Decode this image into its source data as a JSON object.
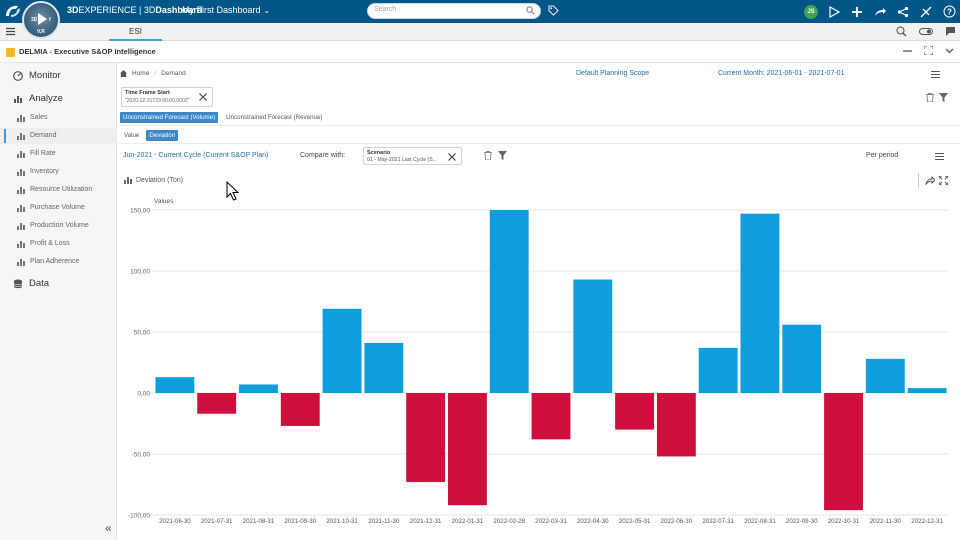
{
  "topbar": {
    "compass_marks": [
      "3D",
      "f",
      "V,R"
    ],
    "brand_prefix": "3D",
    "brand_main": "EXPERIENCE",
    "brand_sep": " | 3D",
    "brand_app": "Dashboard",
    "dashboard_title": "My First Dashboard",
    "search_placeholder": "Search",
    "avatar_initials": "JS"
  },
  "tabs": [
    {
      "label": "ESI"
    }
  ],
  "app": {
    "title": "DELMIA - Executive S&OP Intelligence"
  },
  "sidebar": {
    "sections": [
      {
        "label": "Monitor",
        "icon": "gauge-icon"
      },
      {
        "label": "Analyze",
        "icon": "bar-chart-icon"
      },
      {
        "label": "Data",
        "icon": "database-icon"
      }
    ],
    "items": [
      {
        "label": "Sales"
      },
      {
        "label": "Demand"
      },
      {
        "label": "Fill Rate"
      },
      {
        "label": "Inventory"
      },
      {
        "label": "Resource Utilization"
      },
      {
        "label": "Purchase Volume"
      },
      {
        "label": "Production Volume"
      },
      {
        "label": "Profit & Loss"
      },
      {
        "label": "Plan Adherence"
      }
    ],
    "active_item": "Demand",
    "collapse_glyph": "«"
  },
  "breadcrumb": {
    "home": "Home",
    "sep": "/",
    "current": "Demand"
  },
  "header": {
    "scope": "Default Planning Scope",
    "current_month": "Current Month: 2021-06-01 - 2021-07-01"
  },
  "time_frame": {
    "title": "Time Frame Start",
    "value": "\"2020-12-31T23:00:00.000Z\""
  },
  "forecast_tabs": [
    "Unconstrained Forecast (Volume)",
    "Unconstrained Forecast (Revenue)"
  ],
  "view_tabs": [
    "Value",
    "Deviation"
  ],
  "compare_bar": {
    "cycle": "Jun-2021 - Current Cycle (Current S&OP Plan)",
    "compare_label": "Compare with:",
    "scenario_title": "Scenario",
    "scenario_value": "01 - May-2021 Last Cycle (S...",
    "period": "Per period"
  },
  "chart_header": {
    "title": "Deviation (Ton)"
  },
  "colors": {
    "positive": "#0e9ddd",
    "negative": "#ce0e3c",
    "topbar": "#005686",
    "accent": "#3d87c6"
  },
  "chart_data": {
    "type": "bar",
    "title": "Deviation (Ton)",
    "ylabel": "Values",
    "ylim": [
      -110,
      150
    ],
    "yticks": [
      150,
      100,
      50,
      0,
      -50,
      -100
    ],
    "ytick_labels": [
      "150,00",
      "100,00",
      "50,00",
      "0,00",
      "-50,00",
      "-100,00"
    ],
    "grid": true,
    "categories": [
      "2021-06-30",
      "2021-07-31",
      "2021-08-31",
      "2021-09-30",
      "2021-10-31",
      "2021-11-30",
      "2021-12-31",
      "2022-01-31",
      "2022-02-28",
      "2022-03-31",
      "2022-04-30",
      "2022-05-31",
      "2022-06-30",
      "2022-07-31",
      "2022-08-31",
      "2022-09-30",
      "2022-10-31",
      "2022-11-30",
      "2022-12-31"
    ],
    "values": [
      13,
      -17,
      7,
      -27,
      69,
      41,
      -73,
      -92,
      150,
      -38,
      93,
      -30,
      -52,
      37,
      147,
      56,
      -96,
      28,
      4
    ]
  }
}
